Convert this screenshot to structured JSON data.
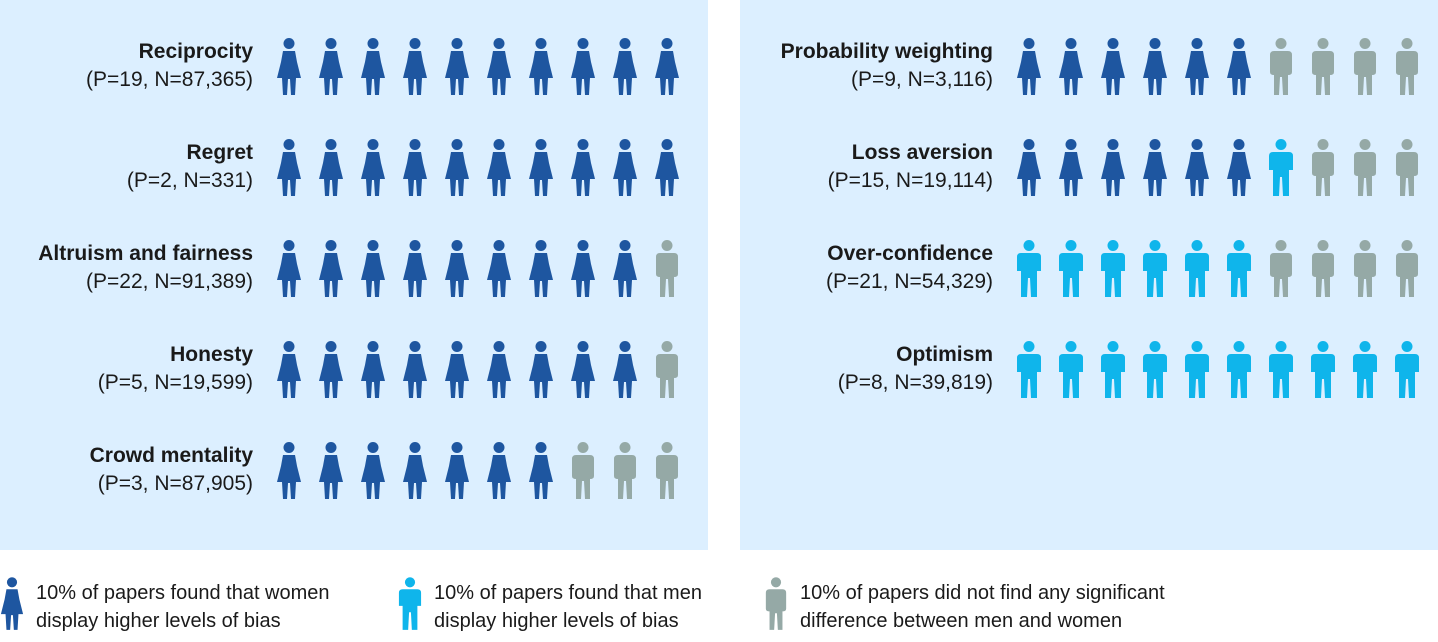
{
  "colors": {
    "panel_bg": "#dcefff",
    "women": "#1e56a0",
    "men": "#0fb5eb",
    "no_difference": "#95a9a6"
  },
  "chart_data": {
    "type": "pictograph",
    "unit_description": "each icon = 10% of papers",
    "panels": [
      {
        "items": [
          {
            "title": "Reciprocity",
            "stats": "(P=19, N=87,365)",
            "women": 10,
            "men": 0,
            "none": 0
          },
          {
            "title": "Regret",
            "stats": "(P=2, N=331)",
            "women": 10,
            "men": 0,
            "none": 0
          },
          {
            "title": "Altruism and fairness",
            "stats": "(P=22, N=91,389)",
            "women": 9,
            "men": 0,
            "none": 1
          },
          {
            "title": "Honesty",
            "stats": "(P=5, N=19,599)",
            "women": 9,
            "men": 0,
            "none": 1
          },
          {
            "title": "Crowd mentality",
            "stats": "(P=3, N=87,905)",
            "women": 7,
            "men": 0,
            "none": 3
          }
        ]
      },
      {
        "items": [
          {
            "title": "Probability weighting",
            "stats": "(P=9, N=3,116)",
            "women": 6,
            "men": 0,
            "none": 4
          },
          {
            "title": "Loss aversion",
            "stats": "(P=15, N=19,114)",
            "women": 6,
            "men": 1,
            "none": 3
          },
          {
            "title": "Over-confidence",
            "stats": "(P=21, N=54,329)",
            "women": 0,
            "men": 6,
            "none": 4
          },
          {
            "title": "Optimism",
            "stats": "(P=8, N=39,819)",
            "women": 0,
            "men": 10,
            "none": 0
          }
        ]
      }
    ]
  },
  "legend": [
    {
      "key": "women",
      "icon": "woman-icon",
      "line1": "10% of papers found that women",
      "line2": "display higher levels of bias"
    },
    {
      "key": "men",
      "icon": "man-icon",
      "line1": "10% of papers found that men",
      "line2": "display higher levels of bias"
    },
    {
      "key": "no_difference",
      "icon": "person-icon",
      "line1": "10% of papers did not find any significant",
      "line2": "difference between men and women"
    }
  ]
}
